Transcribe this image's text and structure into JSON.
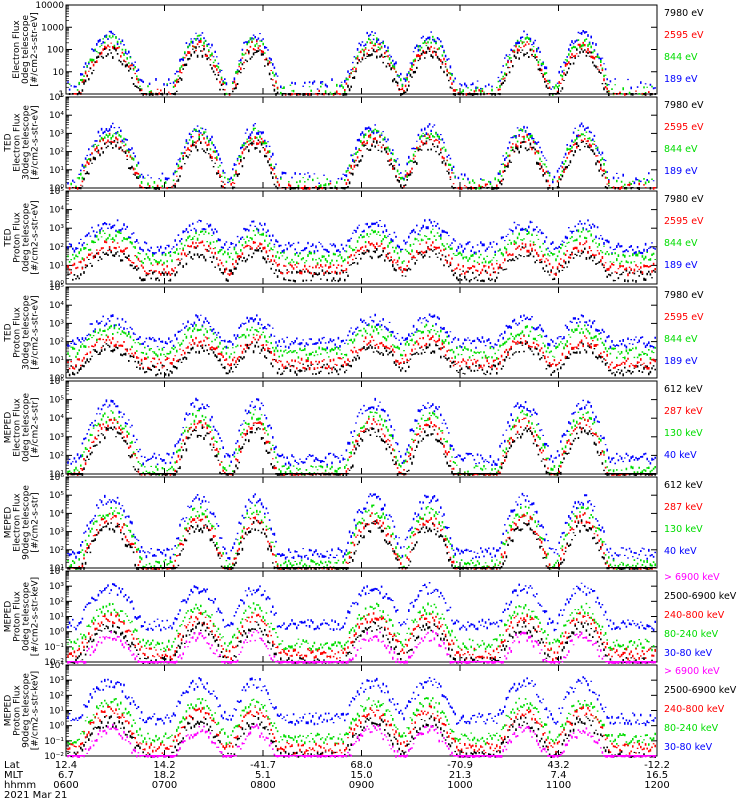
{
  "colors": {
    "black": "#000000",
    "red": "#ff0000",
    "green": "#00dd00",
    "blue": "#0000ff",
    "magenta": "#ff00ff",
    "bg": "#ffffff"
  },
  "chart_data": [
    {
      "type": "scatter",
      "scale": "log",
      "ylim": [
        1,
        10000
      ],
      "ylabel": [
        "Electron Flux",
        "0deg telescope",
        "[#/cm2-s-str-eV]"
      ],
      "yticks": [
        "1",
        "10",
        "100",
        "1000",
        "10000"
      ],
      "series": [
        {
          "name": "7980 eV",
          "color": "black"
        },
        {
          "name": "2595 eV",
          "color": "red"
        },
        {
          "name": "844 eV",
          "color": "green"
        },
        {
          "name": "189 eV",
          "color": "blue"
        }
      ],
      "draw_order": [
        "blue",
        "green",
        "red",
        "black"
      ]
    },
    {
      "type": "scatter",
      "scale": "log",
      "ylim": [
        1,
        100000
      ],
      "ylabel": [
        "TED",
        "Electron Flux",
        "30deg telescope",
        "[#/cm2-s-str-eV]"
      ],
      "yticks": [
        "10⁰",
        "10¹",
        "10²",
        "10³",
        "10⁴",
        "10⁵"
      ],
      "series": [
        {
          "name": "7980 eV",
          "color": "black"
        },
        {
          "name": "2595 eV",
          "color": "red"
        },
        {
          "name": "844 eV",
          "color": "green"
        },
        {
          "name": "189 eV",
          "color": "blue"
        }
      ],
      "draw_order": [
        "blue",
        "green",
        "red",
        "black"
      ]
    },
    {
      "type": "scatter",
      "scale": "log",
      "ylim": [
        1,
        100000
      ],
      "ylabel": [
        "TED",
        "Proton Flux",
        "0deg telescope",
        "[#/cm2-s-str-eV]"
      ],
      "yticks": [
        "10⁰",
        "10¹",
        "10²",
        "10³",
        "10⁴",
        "10⁵"
      ],
      "series": [
        {
          "name": "7980 eV",
          "color": "black"
        },
        {
          "name": "2595 eV",
          "color": "red"
        },
        {
          "name": "844 eV",
          "color": "green"
        },
        {
          "name": "189 eV",
          "color": "blue"
        }
      ],
      "draw_order": [
        "black",
        "red",
        "blue",
        "green"
      ]
    },
    {
      "type": "scatter",
      "scale": "log",
      "ylim": [
        1,
        100000
      ],
      "ylabel": [
        "TED",
        "Proton Flux",
        "30deg telescope",
        "[#/cm2-s-str-eV]"
      ],
      "yticks": [
        "10⁰",
        "10¹",
        "10²",
        "10³",
        "10⁴",
        "10⁵"
      ],
      "series": [
        {
          "name": "7980 eV",
          "color": "black"
        },
        {
          "name": "2595 eV",
          "color": "red"
        },
        {
          "name": "844 eV",
          "color": "green"
        },
        {
          "name": "189 eV",
          "color": "blue"
        }
      ],
      "draw_order": [
        "black",
        "red",
        "blue",
        "green"
      ]
    },
    {
      "type": "scatter",
      "scale": "log",
      "ylim": [
        10,
        1000000
      ],
      "ylabel": [
        "MEPED",
        "Electron Flux",
        "0deg telescope",
        "[#/cm2-s-str]"
      ],
      "yticks": [
        "10¹",
        "10²",
        "10³",
        "10⁴",
        "10⁵",
        "10⁶"
      ],
      "series": [
        {
          "name": "612 keV",
          "color": "black"
        },
        {
          "name": "287 keV",
          "color": "red"
        },
        {
          "name": "130 keV",
          "color": "green"
        },
        {
          "name": "40 keV",
          "color": "blue"
        }
      ],
      "draw_order": [
        "blue",
        "green",
        "red",
        "black"
      ]
    },
    {
      "type": "scatter",
      "scale": "log",
      "ylim": [
        10,
        1000000
      ],
      "ylabel": [
        "MEPED",
        "Electron Flux",
        "90deg telescope",
        "[#/cm2-s-str]"
      ],
      "yticks": [
        "10¹",
        "10²",
        "10³",
        "10⁴",
        "10⁵",
        "10⁶"
      ],
      "series": [
        {
          "name": "612 keV",
          "color": "black"
        },
        {
          "name": "287 keV",
          "color": "red"
        },
        {
          "name": "130 keV",
          "color": "green"
        },
        {
          "name": "40 keV",
          "color": "blue"
        }
      ],
      "draw_order": [
        "blue",
        "green",
        "red",
        "black"
      ]
    },
    {
      "type": "scatter",
      "scale": "log",
      "ylim": [
        0.01,
        10000
      ],
      "ylabel": [
        "MEPED",
        "Proton Flux",
        "0deg telescope",
        "[#/cm2-s-str-keV]"
      ],
      "yticks": [
        "10⁻²",
        "10⁻¹",
        "10⁰",
        "10¹",
        "10²",
        "10³",
        "10⁴"
      ],
      "series": [
        {
          "name": "> 6900 keV",
          "color": "magenta"
        },
        {
          "name": "2500-6900 keV",
          "color": "black"
        },
        {
          "name": "240-800 keV",
          "color": "red"
        },
        {
          "name": "80-240 keV",
          "color": "green"
        },
        {
          "name": "30-80 keV",
          "color": "blue"
        }
      ],
      "draw_order": [
        "blue",
        "green",
        "red",
        "black",
        "magenta"
      ]
    },
    {
      "type": "scatter",
      "scale": "log",
      "ylim": [
        0.01,
        10000
      ],
      "ylabel": [
        "MEPED",
        "Proton Flux",
        "90deg telescope",
        "[#/cm2-s-str-keV]"
      ],
      "yticks": [
        "10⁻²",
        "10⁻¹",
        "10⁰",
        "10¹",
        "10²",
        "10³",
        "10⁴"
      ],
      "series": [
        {
          "name": "> 6900 keV",
          "color": "magenta"
        },
        {
          "name": "2500-6900 keV",
          "color": "black"
        },
        {
          "name": "240-800 keV",
          "color": "red"
        },
        {
          "name": "80-240 keV",
          "color": "green"
        },
        {
          "name": "30-80 keV",
          "color": "blue"
        }
      ],
      "draw_order": [
        "blue",
        "green",
        "red",
        "black",
        "magenta"
      ]
    }
  ],
  "footer": {
    "row_labels": [
      "Lat",
      "MLT",
      "hhmm"
    ],
    "date": "2021 Mar 21",
    "columns": [
      {
        "lat": "12.4",
        "mlt": "6.7",
        "hhmm": "0600"
      },
      {
        "lat": "14.2",
        "mlt": "18.2",
        "hhmm": "0700"
      },
      {
        "lat": "-41.7",
        "mlt": "5.1",
        "hhmm": "0800"
      },
      {
        "lat": "68.0",
        "mlt": "15.0",
        "hhmm": "0900"
      },
      {
        "lat": "-70.9",
        "mlt": "21.3",
        "hhmm": "1000"
      },
      {
        "lat": "43.2",
        "mlt": "7.4",
        "hhmm": "1100"
      },
      {
        "lat": "-12.2",
        "mlt": "16.5",
        "hhmm": "1200"
      }
    ]
  }
}
